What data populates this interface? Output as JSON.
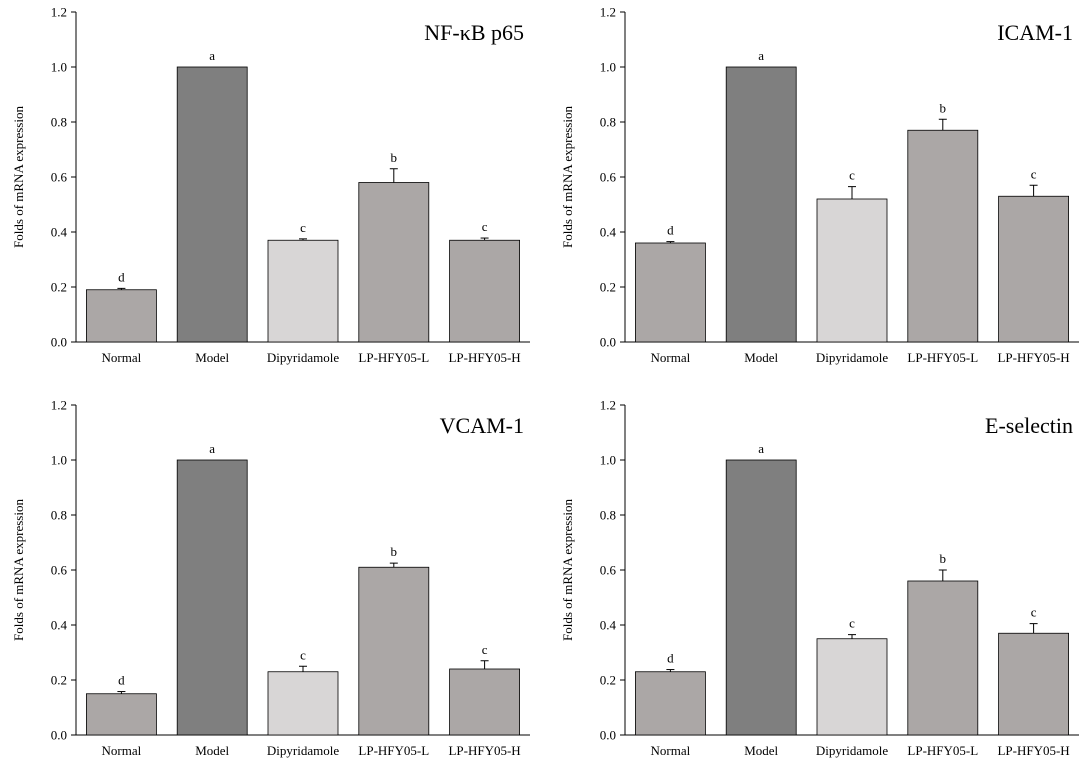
{
  "chart_data": [
    {
      "type": "bar",
      "title": "NF-κB p65",
      "ylabel": "Folds of mRNA expression",
      "xlabel": "",
      "ylim": [
        0,
        1.2
      ],
      "yticks": [
        "0.0",
        "0.2",
        "0.4",
        "0.6",
        "0.8",
        "1.0",
        "1.2"
      ],
      "categories": [
        "Normal",
        "Model",
        "Dipyridamole",
        "LP-HFY05-L",
        "LP-HFY05-H"
      ],
      "values": [
        0.19,
        1.0,
        0.37,
        0.58,
        0.37
      ],
      "errors": [
        0.005,
        0.0,
        0.005,
        0.05,
        0.008
      ],
      "significance": [
        "d",
        "a",
        "c",
        "b",
        "c"
      ],
      "colors": [
        "#aba7a6",
        "#7f7f7f",
        "#d8d6d6",
        "#aba7a6",
        "#aba7a6"
      ],
      "grid": false,
      "legend": "none"
    },
    {
      "type": "bar",
      "title": "ICAM-1",
      "ylabel": "Folds of mRNA expression",
      "xlabel": "",
      "ylim": [
        0,
        1.2
      ],
      "yticks": [
        "0.0",
        "0.2",
        "0.4",
        "0.6",
        "0.8",
        "1.0",
        "1.2"
      ],
      "categories": [
        "Normal",
        "Model",
        "Dipyridamole",
        "LP-HFY05-L",
        "LP-HFY05-H"
      ],
      "values": [
        0.36,
        1.0,
        0.52,
        0.77,
        0.53
      ],
      "errors": [
        0.005,
        0.0,
        0.045,
        0.04,
        0.04
      ],
      "significance": [
        "d",
        "a",
        "c",
        "b",
        "c"
      ],
      "colors": [
        "#aba7a6",
        "#7f7f7f",
        "#d8d6d6",
        "#aba7a6",
        "#aba7a6"
      ],
      "grid": false,
      "legend": "none"
    },
    {
      "type": "bar",
      "title": "VCAM-1",
      "ylabel": "Folds of mRNA expression",
      "xlabel": "",
      "ylim": [
        0,
        1.2
      ],
      "yticks": [
        "0.0",
        "0.2",
        "0.4",
        "0.6",
        "0.8",
        "1.0",
        "1.2"
      ],
      "categories": [
        "Normal",
        "Model",
        "Dipyridamole",
        "LP-HFY05-L",
        "LP-HFY05-H"
      ],
      "values": [
        0.15,
        1.0,
        0.23,
        0.61,
        0.24
      ],
      "errors": [
        0.008,
        0.0,
        0.02,
        0.015,
        0.03
      ],
      "significance": [
        "d",
        "a",
        "c",
        "b",
        "c"
      ],
      "colors": [
        "#aba7a6",
        "#7f7f7f",
        "#d8d6d6",
        "#aba7a6",
        "#aba7a6"
      ],
      "grid": false,
      "legend": "none"
    },
    {
      "type": "bar",
      "title": "E-selectin",
      "ylabel": "Folds of mRNA expression",
      "xlabel": "",
      "ylim": [
        0,
        1.2
      ],
      "yticks": [
        "0.0",
        "0.2",
        "0.4",
        "0.6",
        "0.8",
        "1.0",
        "1.2"
      ],
      "categories": [
        "Normal",
        "Model",
        "Dipyridamole",
        "LP-HFY05-L",
        "LP-HFY05-H"
      ],
      "values": [
        0.23,
        1.0,
        0.35,
        0.56,
        0.37
      ],
      "errors": [
        0.008,
        0.0,
        0.015,
        0.04,
        0.035
      ],
      "significance": [
        "d",
        "a",
        "c",
        "b",
        "c"
      ],
      "colors": [
        "#aba7a6",
        "#7f7f7f",
        "#d8d6d6",
        "#aba7a6",
        "#aba7a6"
      ],
      "grid": false,
      "legend": "none"
    }
  ]
}
